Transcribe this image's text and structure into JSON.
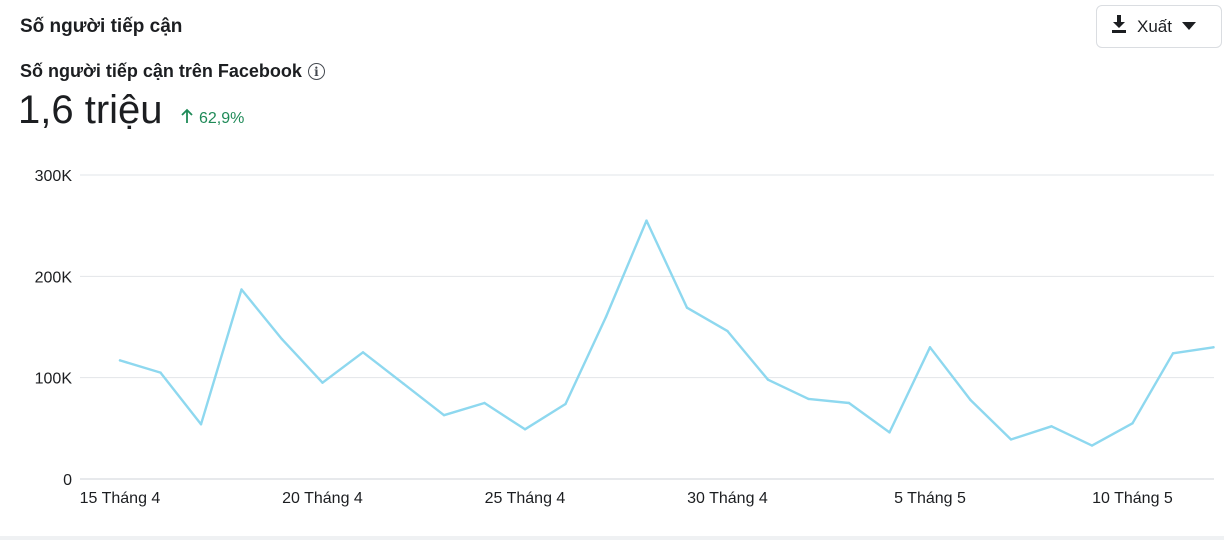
{
  "header": {
    "section_title": "Số người tiếp cận",
    "export_label": "Xuất"
  },
  "metric": {
    "title": "Số người tiếp cận trên Facebook",
    "value": "1,6 triệu",
    "change": "62,9%",
    "change_direction": "up",
    "change_color": "#1f8a58"
  },
  "icons": {
    "info": "info-icon",
    "download": "download-icon",
    "dropdown": "caret-down-icon",
    "change_arrow": "arrow-up-icon"
  },
  "chart_data": {
    "type": "line",
    "title": "",
    "xlabel": "",
    "ylabel": "",
    "ylim": [
      0,
      300000
    ],
    "yticks": [
      0,
      100000,
      200000,
      300000
    ],
    "ytick_labels": [
      "0",
      "100K",
      "200K",
      "300K"
    ],
    "xtick_labels": [
      "15 Tháng 4",
      "20 Tháng 4",
      "25 Tháng 4",
      "30 Tháng 4",
      "5 Tháng 5",
      "10 Tháng 5"
    ],
    "xtick_indices": [
      0,
      5,
      10,
      15,
      20,
      25
    ],
    "x": [
      "15/4",
      "16/4",
      "17/4",
      "18/4",
      "19/4",
      "20/4",
      "21/4",
      "22/4",
      "23/4",
      "24/4",
      "25/4",
      "26/4",
      "27/4",
      "28/4",
      "29/4",
      "30/4",
      "1/5",
      "2/5",
      "3/5",
      "4/5",
      "5/5",
      "6/5",
      "7/5",
      "8/5",
      "9/5",
      "10/5",
      "11/5",
      "12/5"
    ],
    "series": [
      {
        "values": [
          117000,
          105000,
          54000,
          187000,
          138000,
          95000,
          125000,
          94000,
          63000,
          75000,
          49000,
          74000,
          160000,
          255000,
          169000,
          146000,
          98000,
          79000,
          75000,
          46000,
          130000,
          78000,
          39000,
          52000,
          33000,
          55000,
          124000,
          130000
        ],
        "color": "#8ed8ef"
      }
    ],
    "grid": true,
    "legend": "none"
  }
}
